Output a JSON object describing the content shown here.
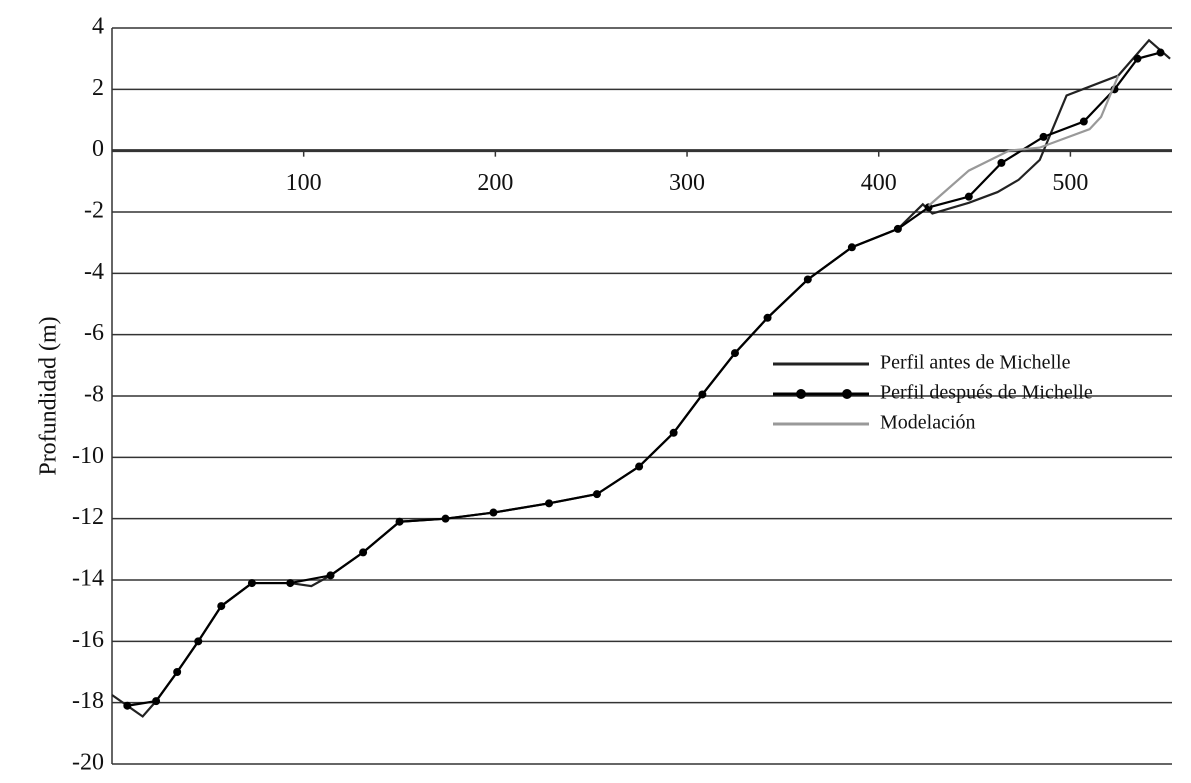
{
  "chart_data": {
    "type": "line",
    "y_label": "Profundidad (m)",
    "xlim": [
      0,
      553
    ],
    "ylim": [
      -20,
      4
    ],
    "xticks": [
      100,
      200,
      300,
      400,
      500
    ],
    "yticks": [
      -20,
      -18,
      -16,
      -14,
      -12,
      -10,
      -8,
      -6,
      -4,
      -2,
      0,
      2,
      4
    ],
    "grid": true,
    "legend": "right",
    "series": [
      {
        "name": "Perfil antes de Michelle",
        "color": "#222222",
        "markers": false,
        "x": [
          0,
          16,
          23,
          34,
          45,
          57,
          73,
          93,
          104,
          114,
          131,
          150,
          174,
          199,
          228,
          253,
          275,
          293,
          308,
          325,
          342,
          363,
          386,
          410,
          423,
          428,
          447,
          462,
          473,
          484,
          498,
          525,
          541,
          552
        ],
        "values": [
          -17.75,
          -18.45,
          -17.95,
          -17.0,
          -16.0,
          -14.85,
          -14.1,
          -14.1,
          -14.2,
          -13.85,
          -13.1,
          -12.1,
          -12.0,
          -11.8,
          -11.5,
          -11.2,
          -10.3,
          -9.2,
          -7.95,
          -6.6,
          -5.45,
          -4.2,
          -3.15,
          -2.55,
          -1.75,
          -2.05,
          -1.7,
          -1.35,
          -0.95,
          -0.3,
          1.8,
          2.45,
          3.6,
          3.0
        ]
      },
      {
        "name": "Perfil después de Michelle",
        "color": "#000000",
        "markers": true,
        "x": [
          8,
          23,
          34,
          45,
          57,
          73,
          93,
          114,
          131,
          150,
          174,
          199,
          228,
          253,
          275,
          293,
          308,
          325,
          342,
          363,
          386,
          410,
          426,
          447,
          464,
          486,
          507,
          523,
          535,
          547
        ],
        "values": [
          -18.1,
          -17.95,
          -17.0,
          -16.0,
          -14.85,
          -14.1,
          -14.1,
          -13.85,
          -13.1,
          -12.1,
          -12.0,
          -11.8,
          -11.5,
          -11.2,
          -10.3,
          -9.2,
          -7.95,
          -6.6,
          -5.45,
          -4.2,
          -3.15,
          -2.55,
          -1.85,
          -1.5,
          -0.4,
          0.45,
          0.95,
          2.0,
          3.0,
          3.2
        ]
      },
      {
        "name": "Modelación",
        "color": "#999999",
        "markers": false,
        "x": [
          426,
          447,
          468,
          484,
          510,
          516,
          525
        ],
        "values": [
          -1.8,
          -0.65,
          0.0,
          0.1,
          0.7,
          1.1,
          2.45
        ]
      }
    ]
  }
}
